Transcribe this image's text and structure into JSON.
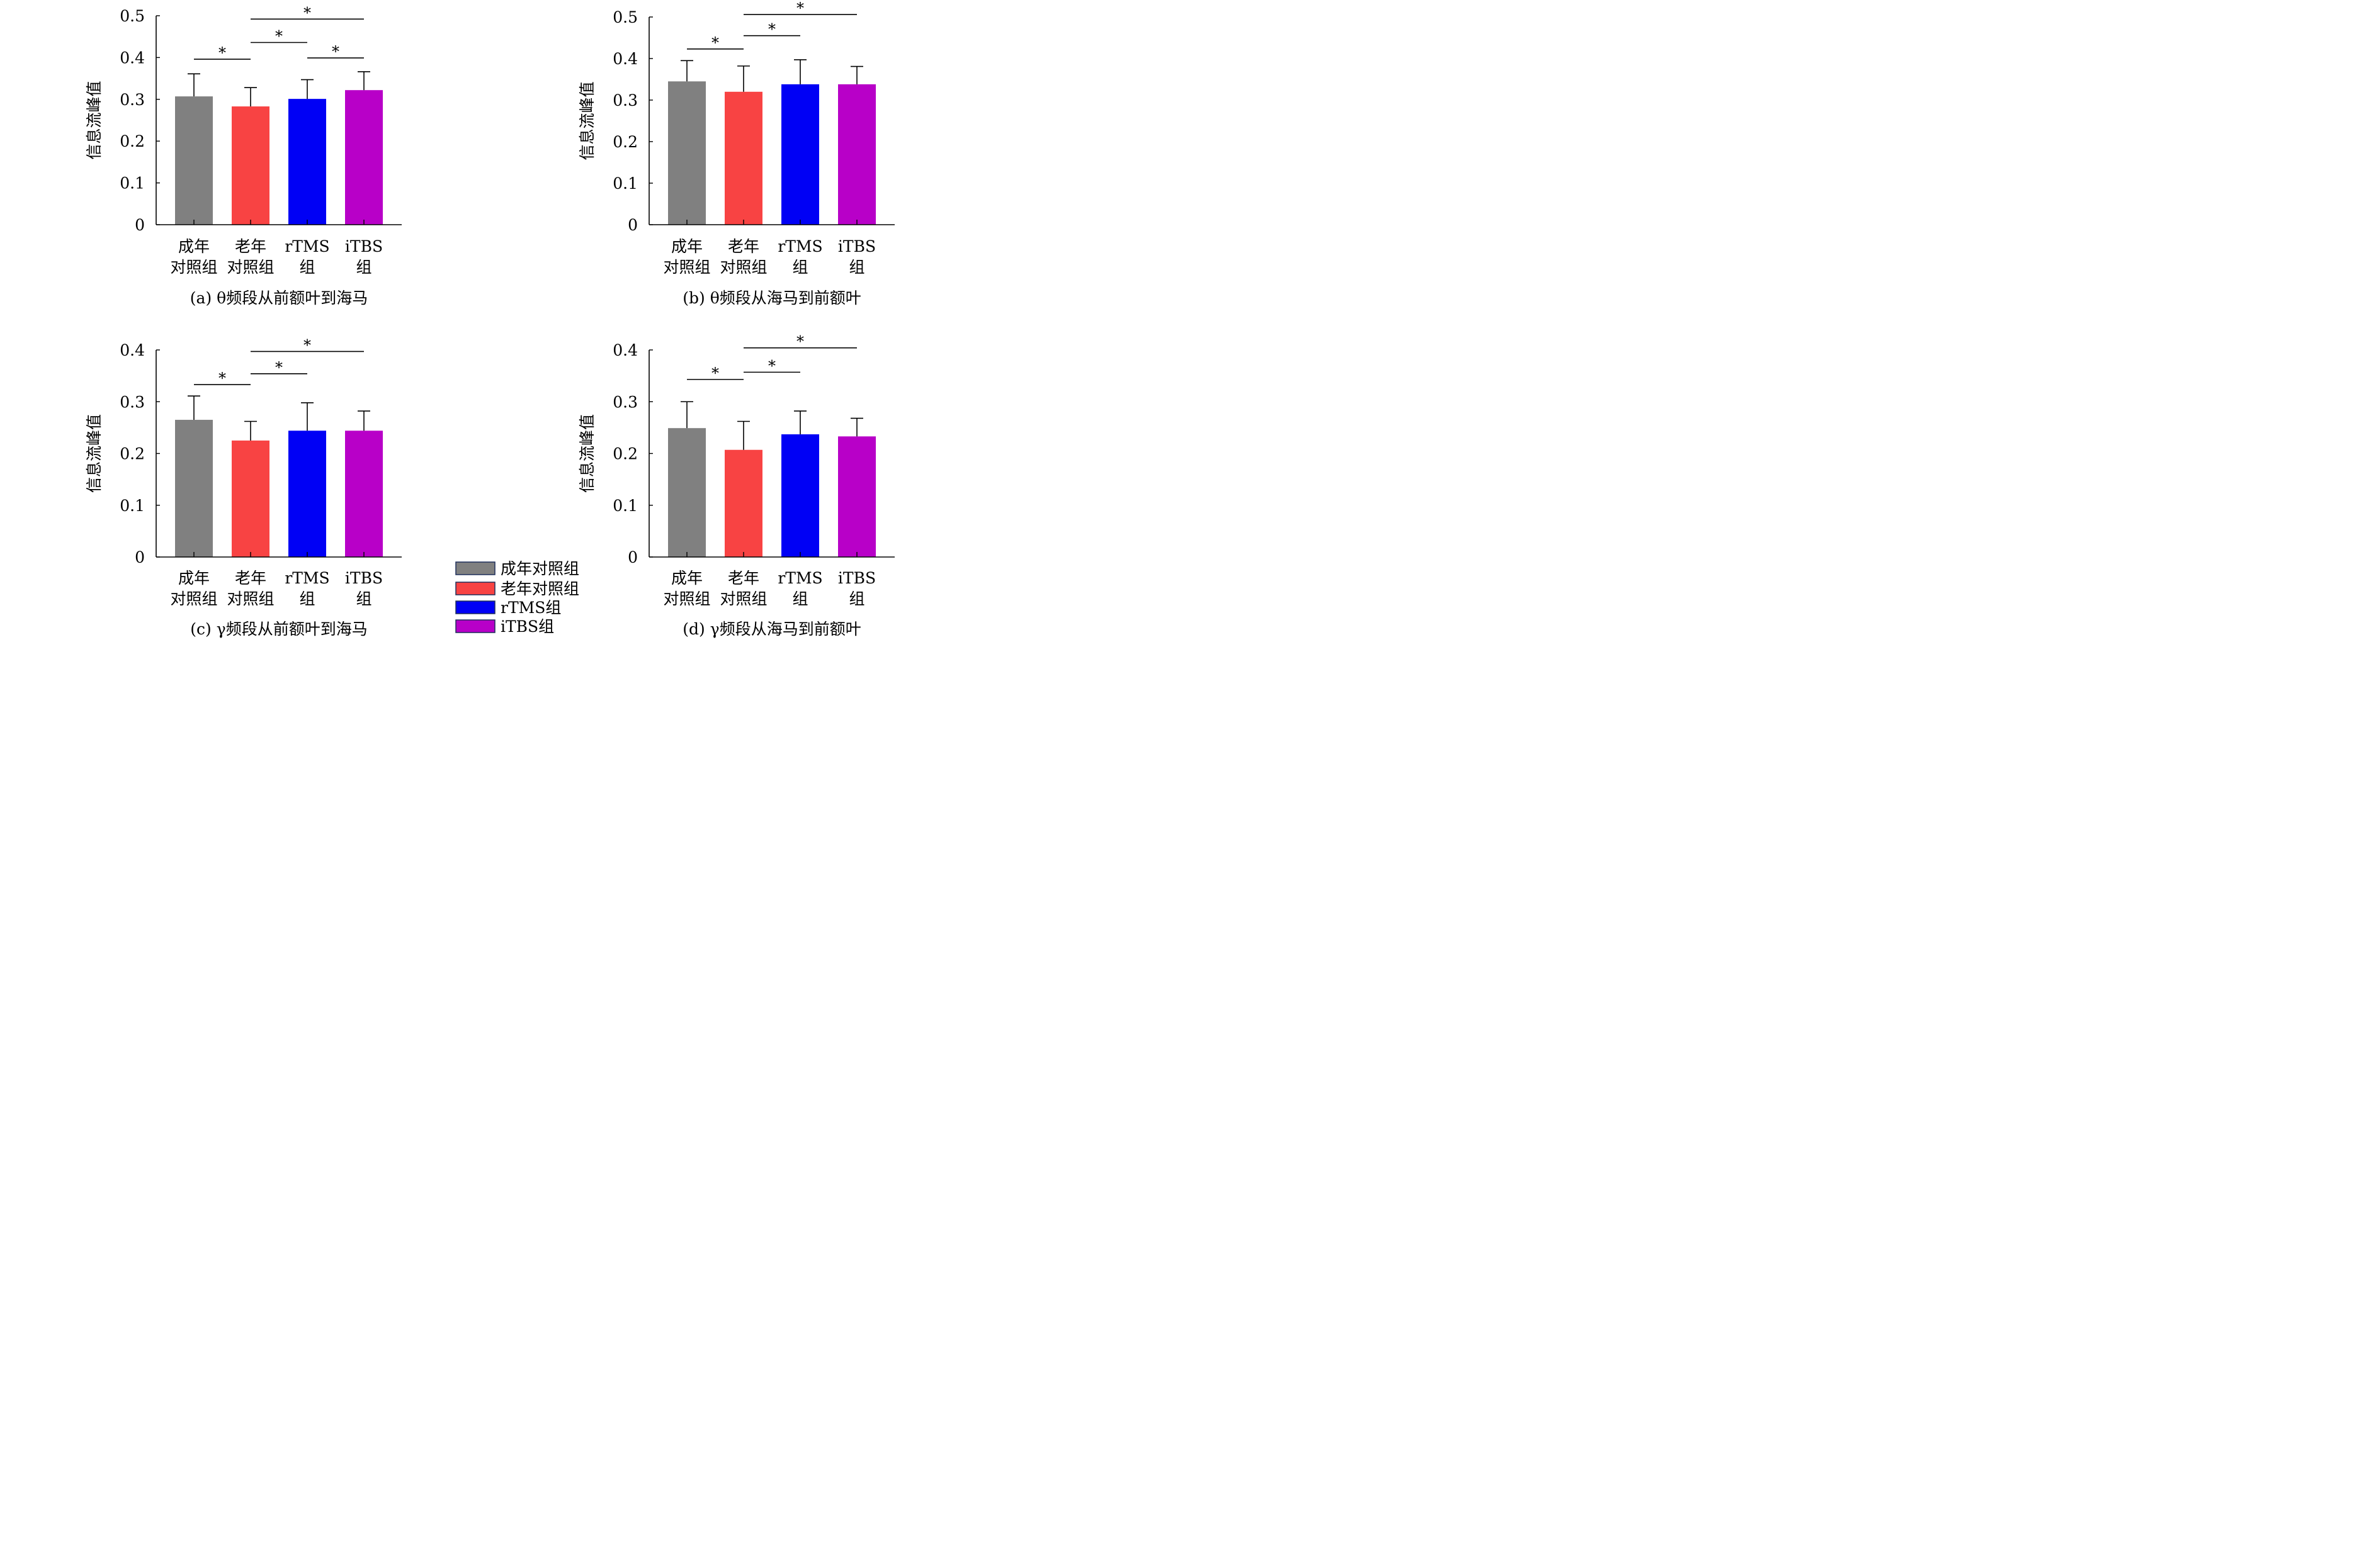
{
  "chart_data": [
    {
      "type": "bar",
      "caption": "(a) θ频段从前额叶到海马",
      "ylabel": "信息流峰值",
      "ylim": [
        0,
        0.5
      ],
      "yticks": [
        "0",
        "0.1",
        "0.2",
        "0.3",
        "0.4",
        "0.5"
      ],
      "categories": [
        [
          "成年",
          "对照组"
        ],
        [
          "老年",
          "对照组"
        ],
        [
          "rTMS",
          "组"
        ],
        [
          "iTBS",
          "组"
        ]
      ],
      "values": [
        0.307,
        0.283,
        0.301,
        0.322
      ],
      "errors": [
        0.054,
        0.045,
        0.046,
        0.044
      ],
      "significance": [
        {
          "from": 0,
          "to": 1,
          "value": 0.396,
          "label": "*"
        },
        {
          "from": 1,
          "to": 2,
          "value": 0.436,
          "label": "*"
        },
        {
          "from": 2,
          "to": 3,
          "value": 0.399,
          "label": "*"
        },
        {
          "from": 1,
          "to": 3,
          "value": 0.492,
          "label": "*"
        }
      ]
    },
    {
      "type": "bar",
      "caption": "(b) θ频段从海马到前额叶",
      "ylabel": "信息流峰值",
      "ylim": [
        0,
        0.5
      ],
      "yticks": [
        "0",
        "0.1",
        "0.2",
        "0.3",
        "0.4",
        "0.5"
      ],
      "categories": [
        [
          "成年",
          "对照组"
        ],
        [
          "老年",
          "对照组"
        ],
        [
          "rTMS",
          "组"
        ],
        [
          "iTBS",
          "组"
        ]
      ],
      "values": [
        0.345,
        0.32,
        0.338,
        0.338
      ],
      "errors": [
        0.05,
        0.062,
        0.059,
        0.043
      ],
      "significance": [
        {
          "from": 0,
          "to": 1,
          "value": 0.423,
          "label": "*"
        },
        {
          "from": 1,
          "to": 2,
          "value": 0.455,
          "label": "*"
        },
        {
          "from": 1,
          "to": 3,
          "value": 0.506,
          "label": "*"
        }
      ]
    },
    {
      "type": "bar",
      "caption": "(c) γ频段从前额叶到海马",
      "ylabel": "信息流峰值",
      "ylim": [
        0,
        0.4
      ],
      "yticks": [
        "0",
        "0.1",
        "0.2",
        "0.3",
        "0.4"
      ],
      "categories": [
        [
          "成年",
          "对照组"
        ],
        [
          "老年",
          "对照组"
        ],
        [
          "rTMS",
          "组"
        ],
        [
          "iTBS",
          "组"
        ]
      ],
      "values": [
        0.265,
        0.225,
        0.244,
        0.244
      ],
      "errors": [
        0.046,
        0.037,
        0.054,
        0.038
      ],
      "significance": [
        {
          "from": 0,
          "to": 1,
          "value": 0.333,
          "label": "*"
        },
        {
          "from": 1,
          "to": 2,
          "value": 0.354,
          "label": "*"
        },
        {
          "from": 1,
          "to": 3,
          "value": 0.397,
          "label": "*"
        }
      ]
    },
    {
      "type": "bar",
      "caption": "(d) γ频段从海马到前额叶",
      "ylabel": "信息流峰值",
      "ylim": [
        0,
        0.4
      ],
      "yticks": [
        "0",
        "0.1",
        "0.2",
        "0.3",
        "0.4"
      ],
      "categories": [
        [
          "成年",
          "对照组"
        ],
        [
          "老年",
          "对照组"
        ],
        [
          "rTMS",
          "组"
        ],
        [
          "iTBS",
          "组"
        ]
      ],
      "values": [
        0.249,
        0.207,
        0.237,
        0.233
      ],
      "errors": [
        0.051,
        0.055,
        0.045,
        0.035
      ],
      "significance": [
        {
          "from": 0,
          "to": 1,
          "value": 0.343,
          "label": "*"
        },
        {
          "from": 1,
          "to": 2,
          "value": 0.357,
          "label": "*"
        },
        {
          "from": 1,
          "to": 3,
          "value": 0.404,
          "label": "*"
        }
      ]
    }
  ],
  "legend": {
    "entries": [
      "成年对照组",
      "老年对照组",
      "rTMS组",
      "iTBS组"
    ],
    "colors": [
      "#808080",
      "#f84343",
      "#0000f5",
      "#b800c8"
    ]
  }
}
